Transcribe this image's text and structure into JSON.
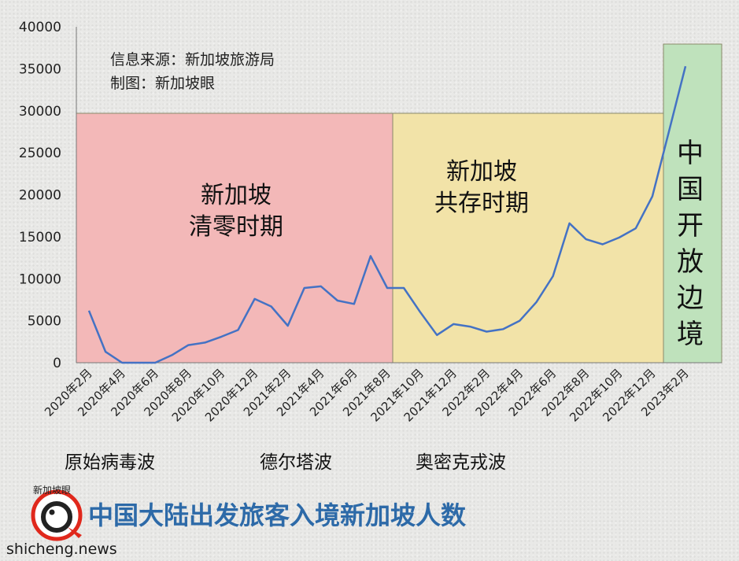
{
  "source_note": {
    "line1": "信息来源：新加坡旅游局",
    "line2": "制图：新加坡眼"
  },
  "title": "中国大陆出发旅客入境新加坡人数",
  "watermark": "shicheng.news",
  "logo_text": "新加坡眼",
  "chart_data": {
    "type": "line",
    "categories": [
      "2020年2月",
      "2020年3月",
      "2020年4月",
      "2020年5月",
      "2020年6月",
      "2020年7月",
      "2020年8月",
      "2020年9月",
      "2020年10月",
      "2020年11月",
      "2020年12月",
      "2021年1月",
      "2021年2月",
      "2021年3月",
      "2021年4月",
      "2021年5月",
      "2021年6月",
      "2021年7月",
      "2021年8月",
      "2021年9月",
      "2021年10月",
      "2021年11月",
      "2021年12月",
      "2022年1月",
      "2022年2月",
      "2022年3月",
      "2022年4月",
      "2022年5月",
      "2022年6月",
      "2022年7月",
      "2022年8月",
      "2022年9月",
      "2022年10月",
      "2022年11月",
      "2022年12月",
      "2023年1月",
      "2023年2月"
    ],
    "tick_labels": [
      "2020年2月",
      "2020年4月",
      "2020年6月",
      "2020年8月",
      "2020年10月",
      "2020年12月",
      "2021年2月",
      "2021年4月",
      "2021年6月",
      "2021年8月",
      "2021年10月",
      "2021年12月",
      "2022年2月",
      "2022年4月",
      "2022年6月",
      "2022年8月",
      "2022年10月",
      "2022年12月",
      "2023年2月"
    ],
    "values": [
      6200,
      1300,
      0,
      0,
      0,
      900,
      2100,
      2400,
      3100,
      3900,
      7600,
      6700,
      4400,
      8900,
      9100,
      7400,
      7000,
      12700,
      8900,
      8900,
      6000,
      3300,
      4600,
      4300,
      3700,
      4000,
      5000,
      7200,
      10300,
      16600,
      14700,
      14100,
      14900,
      16000,
      19800,
      27500,
      35300
    ],
    "ylim": [
      0,
      40000
    ],
    "yticks": [
      0,
      5000,
      10000,
      15000,
      20000,
      25000,
      30000,
      35000,
      40000
    ],
    "line_color": "#4472c4",
    "zones": [
      {
        "label_lines": [
          "新加坡",
          "清零时期"
        ],
        "from": 0,
        "to": 19,
        "color": "#f3b8b8"
      },
      {
        "label_lines": [
          "新加坡",
          "共存时期"
        ],
        "from": 19,
        "to": 35.5,
        "color": "#f2e3a8"
      },
      {
        "label_lines": [
          "中",
          "国",
          "开",
          "放",
          "边",
          "境"
        ],
        "from": 35.5,
        "to": 37,
        "color": "#bfe2bc"
      }
    ],
    "waves": [
      "原始病毒波",
      "德尔塔波",
      "奥密克戎波"
    ]
  }
}
